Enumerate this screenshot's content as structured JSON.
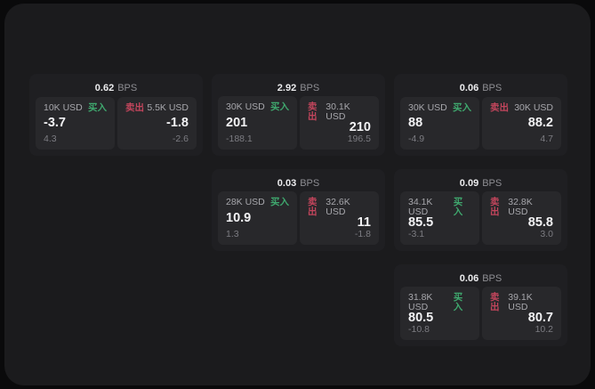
{
  "labels": {
    "bps_suffix": "BPS",
    "buy": "买入",
    "sell": "卖出"
  },
  "colors": {
    "buy_green": "#3fa86e",
    "sell_red": "#c2455c",
    "window_bg": "#1b1b1d",
    "card_bg": "#1f1f22",
    "panel_bg": "#28282b"
  },
  "cards": [
    {
      "bps": "0.62",
      "col": 1,
      "row": 1,
      "buy": {
        "amount": "10K USD",
        "price": "-3.7",
        "delta": "4.3"
      },
      "sell": {
        "amount": "5.5K USD",
        "price": "-1.8",
        "delta": "-2.6"
      }
    },
    {
      "bps": "2.92",
      "col": 2,
      "row": 1,
      "buy": {
        "amount": "30K USD",
        "price": "201",
        "delta": "-188.1"
      },
      "sell": {
        "amount": "30.1K USD",
        "price": "210",
        "delta": "196.5"
      }
    },
    {
      "bps": "0.06",
      "col": 3,
      "row": 1,
      "buy": {
        "amount": "30K USD",
        "price": "88",
        "delta": "-4.9"
      },
      "sell": {
        "amount": "30K USD",
        "price": "88.2",
        "delta": "4.7"
      }
    },
    {
      "bps": "0.03",
      "col": 2,
      "row": 2,
      "buy": {
        "amount": "28K USD",
        "price": "10.9",
        "delta": "1.3"
      },
      "sell": {
        "amount": "32.6K USD",
        "price": "11",
        "delta": "-1.8"
      }
    },
    {
      "bps": "0.09",
      "col": 3,
      "row": 2,
      "buy": {
        "amount": "34.1K USD",
        "price": "85.5",
        "delta": "-3.1"
      },
      "sell": {
        "amount": "32.8K USD",
        "price": "85.8",
        "delta": "3.0"
      }
    },
    {
      "bps": "0.06",
      "col": 3,
      "row": 3,
      "buy": {
        "amount": "31.8K USD",
        "price": "80.5",
        "delta": "-10.8"
      },
      "sell": {
        "amount": "39.1K USD",
        "price": "80.7",
        "delta": "10.2"
      }
    }
  ]
}
